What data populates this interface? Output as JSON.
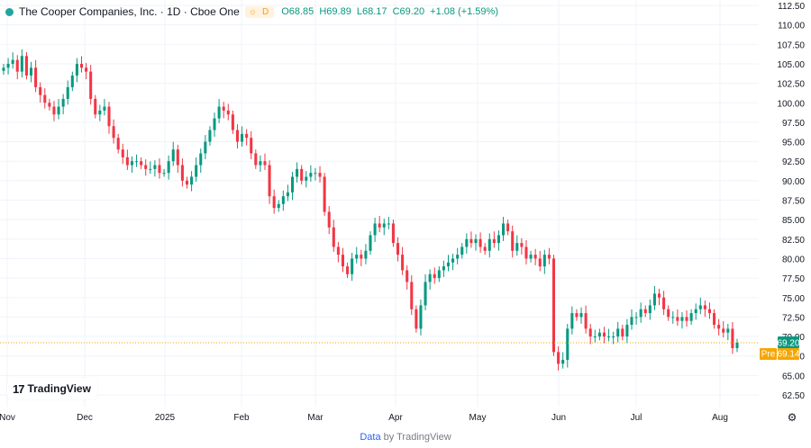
{
  "legend": {
    "title": "The Cooper Companies, Inc. · 1D · Cboe One",
    "badge": "D",
    "open": "O68.85",
    "high": "H69.89",
    "low": "L68.17",
    "close": "C69.20",
    "change": "+1.08 (+1.59%)"
  },
  "logo": {
    "text": "TradingView"
  },
  "footer": {
    "link": "Data",
    "suffix": "by TradingView"
  },
  "colors": {
    "up": "#089981",
    "down": "#f23645",
    "premarket": "#f7a600",
    "price_line": "#f7a600"
  },
  "chart_data": {
    "type": "candlestick",
    "x_labels": [
      "Nov",
      "Dec",
      "2025",
      "Feb",
      "Mar",
      "Apr",
      "May",
      "Jun",
      "Jul",
      "Aug"
    ],
    "y_ticks": [
      62.5,
      65,
      67.5,
      70,
      72.5,
      75,
      77.5,
      80,
      82.5,
      85,
      87.5,
      90,
      92.5,
      95,
      97.5,
      100,
      102.5,
      105,
      107.5,
      110,
      112.5
    ],
    "y_tick_labels": [
      "62.50",
      "65.00",
      "67.50",
      "70.00",
      "72.50",
      "75.00",
      "77.50",
      "80.00",
      "82.50",
      "85.00",
      "87.50",
      "90.00",
      "92.50",
      "95.00",
      "97.50",
      "100.00",
      "102.50",
      "105.00",
      "107.50",
      "110.00",
      "112.50"
    ],
    "ylim": [
      61,
      113
    ],
    "last_price": {
      "label": "69.20",
      "value": 69.2
    },
    "premarket": {
      "label": "Pre",
      "value_label": "69.14",
      "value": 69.14
    },
    "closes": [
      104.5,
      105.0,
      105.5,
      104.0,
      106.0,
      103.5,
      104.5,
      102.0,
      101.0,
      100.0,
      99.5,
      98.5,
      99.5,
      100.5,
      102.0,
      103.5,
      105.0,
      104.5,
      104.0,
      100.5,
      98.5,
      99.0,
      99.5,
      97.0,
      95.5,
      94.0,
      93.0,
      92.0,
      92.5,
      92.5,
      92.0,
      91.5,
      91.5,
      92.0,
      91.0,
      91.0,
      92.5,
      94.0,
      92.0,
      90.0,
      89.5,
      90.5,
      92.0,
      93.5,
      95.0,
      96.5,
      98.0,
      99.5,
      99.0,
      98.5,
      96.5,
      95.0,
      96.0,
      95.5,
      93.5,
      92.0,
      92.5,
      92.0,
      88.0,
      86.5,
      87.0,
      88.0,
      88.5,
      90.5,
      91.5,
      90.0,
      90.5,
      91.0,
      91.0,
      90.5,
      86.0,
      84.0,
      81.5,
      80.5,
      79.0,
      78.0,
      80.0,
      80.5,
      80.0,
      81.0,
      83.0,
      84.5,
      84.0,
      84.5,
      84.5,
      82.0,
      80.5,
      78.5,
      77.0,
      73.5,
      71.0,
      74.0,
      77.0,
      78.0,
      77.5,
      78.5,
      79.0,
      79.5,
      80.0,
      80.5,
      81.5,
      82.5,
      82.0,
      82.5,
      81.5,
      81.0,
      82.5,
      82.0,
      83.0,
      84.5,
      83.5,
      81.0,
      82.0,
      81.5,
      80.0,
      80.5,
      80.0,
      79.0,
      80.5,
      80.0,
      68.0,
      66.5,
      67.0,
      71.0,
      73.0,
      72.5,
      73.0,
      71.0,
      70.0,
      70.0,
      70.5,
      70.0,
      70.0,
      70.0,
      71.0,
      70.0,
      71.5,
      72.5,
      72.5,
      73.5,
      73.0,
      74.0,
      75.5,
      75.0,
      73.5,
      72.5,
      72.5,
      72.0,
      72.5,
      72.0,
      73.0,
      73.5,
      74.0,
      73.5,
      73.0,
      71.5,
      71.0,
      70.5,
      71.0,
      68.5,
      69.2
    ]
  }
}
